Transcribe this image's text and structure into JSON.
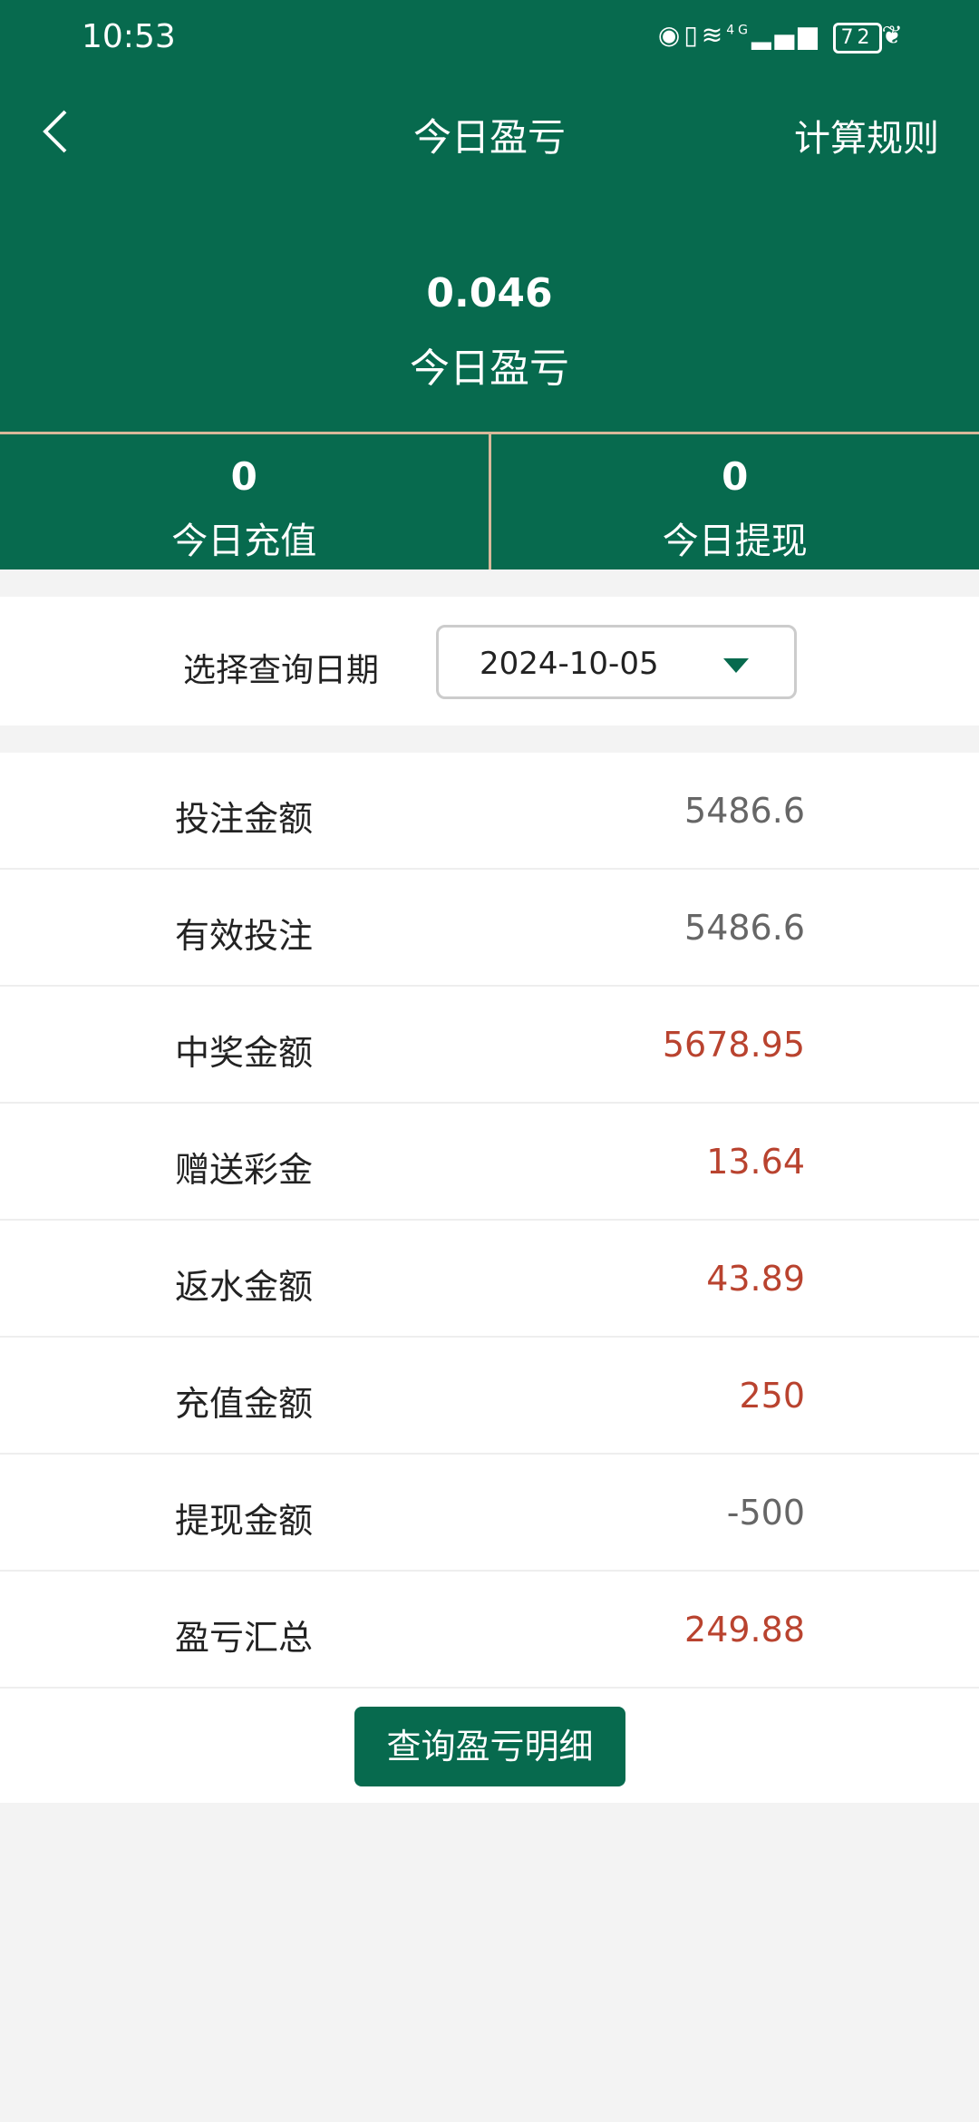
{
  "status": {
    "time": "10:53",
    "battery": "72",
    "icons": [
      "eye-icon",
      "vibrate-icon",
      "wifi-icon",
      "4g-signal-icon",
      "battery-icon",
      "leaf-icon"
    ],
    "network": "4G"
  },
  "header": {
    "title": "今日盈亏",
    "rules": "计算规则",
    "value": "0.046",
    "value_label": "今日盈亏"
  },
  "stats": [
    {
      "value": "0",
      "label": "今日充值"
    },
    {
      "value": "0",
      "label": "今日提现"
    }
  ],
  "date": {
    "label": "选择查询日期",
    "value": "2024-10-05"
  },
  "rows": [
    {
      "label": "投注金额",
      "value": "5486.6",
      "color": "#666666"
    },
    {
      "label": "有效投注",
      "value": "5486.6",
      "color": "#666666"
    },
    {
      "label": "中奖金额",
      "value": "5678.95",
      "color": "#b9432f"
    },
    {
      "label": "赠送彩金",
      "value": "13.64",
      "color": "#b9432f"
    },
    {
      "label": "返水金额",
      "value": "43.89",
      "color": "#b9432f"
    },
    {
      "label": "充值金额",
      "value": "250",
      "color": "#b9432f"
    },
    {
      "label": "提现金额",
      "value": "-500",
      "color": "#666666"
    },
    {
      "label": "盈亏汇总",
      "value": "249.88",
      "color": "#b9432f"
    }
  ],
  "button": "查询盈亏明细",
  "colors": {
    "brand": "#076a4e",
    "divider": "#d8b89a"
  }
}
